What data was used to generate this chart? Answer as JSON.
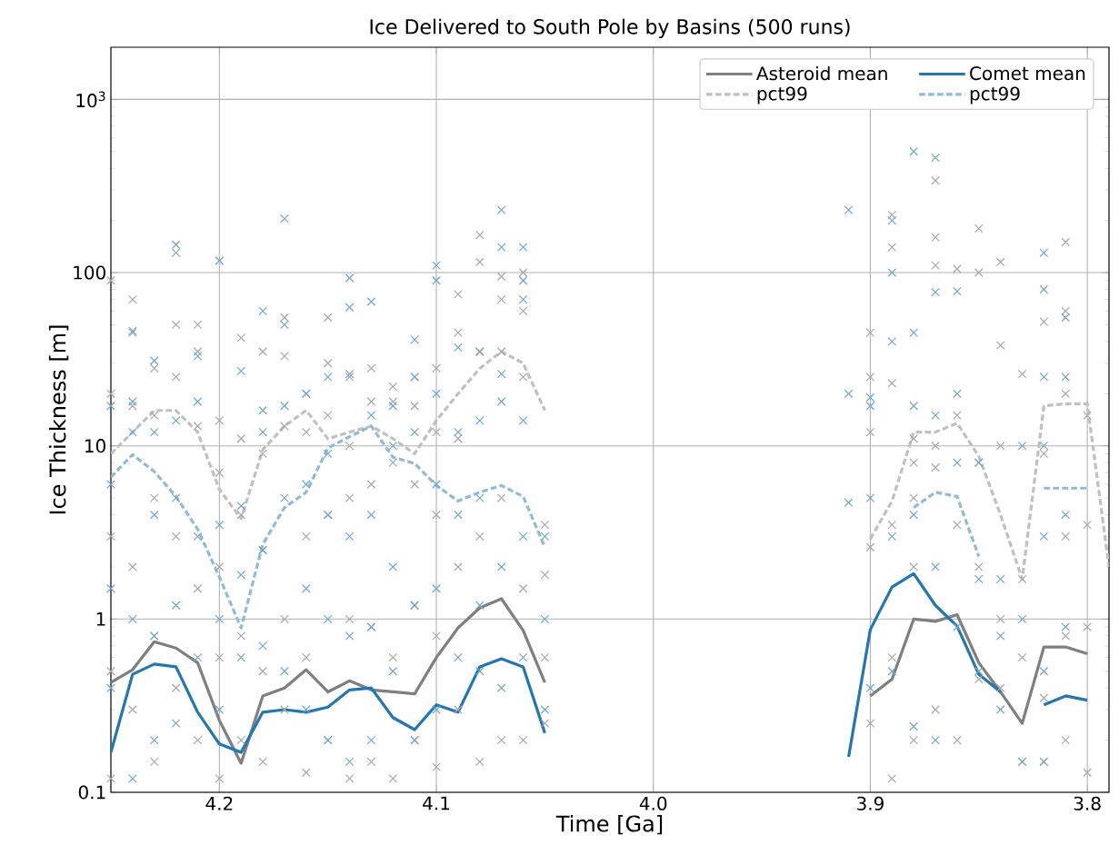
{
  "chart_data": {
    "type": "line",
    "title": "Ice Delivered to South Pole by Basins (500 runs)",
    "xlabel": "Time [Ga]",
    "ylabel": "Ice Thickness [m]",
    "xlim": [
      4.25,
      3.79
    ],
    "ylim": [
      0.1,
      2000
    ],
    "log": "y",
    "grid": true,
    "legend": "top right",
    "xticks": [
      4.2,
      4.1,
      {
        "value": 4.0,
        "label": "4.0"
      },
      3.9,
      3.8
    ],
    "yticks": [
      0.1,
      1,
      10,
      100,
      {
        "value": 1000,
        "label": "10$^{3}$"
      }
    ],
    "x": [
      4.25,
      4.24,
      4.23,
      4.22,
      4.21,
      4.2,
      4.19,
      4.18,
      4.17,
      4.16,
      4.15,
      4.14,
      4.13,
      4.12,
      4.11,
      4.1,
      4.09,
      4.08,
      4.07,
      4.06,
      4.05,
      4.0,
      3.91,
      3.9,
      3.89,
      3.88,
      3.87,
      3.86,
      3.85,
      3.84,
      3.83,
      3.82,
      3.81,
      3.8,
      3.79
    ],
    "series": [
      {
        "type": "scatter",
        "color": "#a6a6a6",
        "marker": "cross",
        "x": [
          4.25,
          4.25,
          4.25,
          4.25,
          4.25,
          4.24,
          4.24,
          4.24,
          4.24,
          4.24,
          4.23,
          4.23,
          4.23,
          4.23,
          4.23,
          4.22,
          4.22,
          4.22,
          4.22,
          4.22,
          4.21,
          4.21,
          4.21,
          4.21,
          4.21,
          4.2,
          4.2,
          4.2,
          4.2,
          4.2,
          4.19,
          4.19,
          4.19,
          4.19,
          4.19,
          4.18,
          4.18,
          4.18,
          4.18,
          4.18,
          4.17,
          4.17,
          4.17,
          4.17,
          4.17,
          4.16,
          4.16,
          4.16,
          4.16,
          4.16,
          4.15,
          4.15,
          4.15,
          4.15,
          4.15,
          4.14,
          4.14,
          4.14,
          4.14,
          4.14,
          4.13,
          4.13,
          4.13,
          4.13,
          4.13,
          4.12,
          4.12,
          4.12,
          4.12,
          4.12,
          4.11,
          4.11,
          4.11,
          4.11,
          4.11,
          4.1,
          4.1,
          4.1,
          4.1,
          4.1,
          4.09,
          4.09,
          4.09,
          4.09,
          4.09,
          4.08,
          4.08,
          4.08,
          4.08,
          4.08,
          4.07,
          4.07,
          4.07,
          4.07,
          4.07,
          4.06,
          4.06,
          4.06,
          4.06,
          4.06,
          4.05,
          4.05,
          4.05,
          4.05,
          3.9,
          3.9,
          3.9,
          3.9,
          3.9,
          3.89,
          3.89,
          3.89,
          3.89,
          3.89,
          3.89,
          3.88,
          3.88,
          3.88,
          3.88,
          3.88,
          3.87,
          3.87,
          3.87,
          3.87,
          3.87,
          3.87,
          3.86,
          3.86,
          3.86,
          3.86,
          3.85,
          3.85,
          3.85,
          3.85,
          3.85,
          3.84,
          3.84,
          3.84,
          3.84,
          3.84,
          3.83,
          3.83,
          3.83,
          3.83,
          3.82,
          3.82,
          3.82,
          3.82,
          3.81,
          3.81,
          3.81,
          3.81,
          3.81,
          3.81,
          3.8,
          3.8,
          3.8,
          3.8
        ],
        "values": [
          90,
          20,
          3,
          0.5,
          0.12,
          70,
          45,
          17,
          2,
          0.3,
          28,
          15,
          5,
          0.8,
          0.15,
          130,
          50,
          25,
          3,
          0.4,
          50,
          35,
          13,
          1.5,
          0.2,
          14,
          7,
          2,
          0.6,
          0.12,
          42,
          11,
          4,
          0.8,
          0.2,
          35,
          9,
          2.5,
          0.5,
          0.15,
          55,
          33,
          13,
          1,
          0.3,
          20,
          12,
          3,
          0.6,
          0.13,
          55,
          30,
          15,
          4,
          0.2,
          25,
          10,
          5,
          1,
          0.12,
          28,
          18,
          6,
          0.9,
          0.15,
          22,
          18,
          8,
          0.6,
          0.12,
          25,
          17,
          6,
          1.2,
          0.2,
          28,
          12,
          4,
          0.8,
          0.14,
          75,
          45,
          11,
          2,
          0.3,
          165,
          115,
          35,
          3,
          0.15,
          95,
          70,
          35,
          5,
          0.2,
          100,
          60,
          25,
          1.5,
          0.2,
          3.5,
          1.8,
          0.6,
          0.25,
          45,
          25,
          12,
          2.6,
          0.25,
          215,
          140,
          23,
          3.5,
          0.6,
          0.12,
          11,
          8,
          5,
          2,
          0.2,
          340,
          160,
          110,
          10,
          7.5,
          0.3,
          105,
          15,
          3.5,
          0.2,
          180,
          100,
          8,
          2,
          0.45,
          115,
          38,
          10,
          1,
          0.4,
          26,
          1.7,
          0.6,
          0.15,
          52,
          9,
          0.35,
          0.15,
          150,
          60,
          20,
          3,
          0.8,
          0.2,
          15,
          3.5,
          0.9,
          0.13
        ]
      },
      {
        "type": "scatter",
        "color": "#6ca6d2",
        "marker": "cross",
        "x": [
          4.25,
          4.25,
          4.25,
          4.25,
          4.24,
          4.24,
          4.24,
          4.24,
          4.24,
          4.23,
          4.23,
          4.23,
          4.23,
          4.23,
          4.22,
          4.22,
          4.22,
          4.22,
          4.22,
          4.21,
          4.21,
          4.21,
          4.21,
          4.2,
          4.2,
          4.2,
          4.2,
          4.19,
          4.19,
          4.19,
          4.19,
          4.18,
          4.18,
          4.18,
          4.18,
          4.18,
          4.17,
          4.17,
          4.17,
          4.17,
          4.17,
          4.16,
          4.16,
          4.16,
          4.16,
          4.15,
          4.15,
          4.15,
          4.15,
          4.15,
          4.14,
          4.14,
          4.14,
          4.14,
          4.14,
          4.14,
          4.13,
          4.13,
          4.13,
          4.13,
          4.13,
          4.12,
          4.12,
          4.12,
          4.12,
          4.11,
          4.11,
          4.11,
          4.11,
          4.11,
          4.1,
          4.1,
          4.1,
          4.1,
          4.1,
          4.1,
          4.09,
          4.09,
          4.09,
          4.09,
          4.08,
          4.08,
          4.08,
          4.08,
          4.08,
          4.07,
          4.07,
          4.07,
          4.07,
          4.07,
          4.07,
          4.06,
          4.06,
          4.06,
          4.06,
          4.06,
          4.06,
          4.05,
          4.05,
          4.05,
          3.91,
          3.91,
          3.91,
          3.9,
          3.9,
          3.9,
          3.9,
          3.89,
          3.89,
          3.89,
          3.89,
          3.89,
          3.88,
          3.88,
          3.88,
          3.88,
          3.88,
          3.87,
          3.87,
          3.87,
          3.87,
          3.87,
          3.86,
          3.86,
          3.86,
          3.86,
          3.85,
          3.85,
          3.85,
          3.84,
          3.84,
          3.84,
          3.83,
          3.83,
          3.83,
          3.82,
          3.82,
          3.82,
          3.82,
          3.82,
          3.82,
          3.82,
          3.81,
          3.81,
          3.81,
          3.81
        ],
        "values": [
          17,
          6,
          1.5,
          0.4,
          46,
          18,
          12,
          1,
          0.12,
          31,
          12,
          4,
          0.8,
          0.2,
          145,
          14,
          5,
          1.2,
          0.25,
          33,
          18,
          3,
          0.6,
          117,
          3.5,
          1,
          0.3,
          27,
          4.5,
          1.8,
          0.6,
          60,
          16,
          12,
          2.5,
          0.7,
          205,
          50,
          17,
          5,
          0.5,
          20,
          6,
          1.5,
          0.3,
          25,
          9,
          4,
          1,
          0.2,
          93,
          63,
          26,
          3,
          0.8,
          0.15,
          68,
          15,
          4,
          0.9,
          0.2,
          17,
          10,
          2,
          0.5,
          41,
          25,
          12,
          1.2,
          0.2,
          110,
          90,
          20,
          6,
          1.5,
          0.3,
          37,
          12,
          4,
          0.6,
          35,
          14,
          5,
          1.2,
          0.5,
          230,
          140,
          26,
          18,
          2,
          0.4,
          140,
          90,
          70,
          14,
          3,
          0.6,
          3,
          1,
          0.3,
          230,
          20,
          4.7,
          19,
          17,
          5,
          0.4,
          200,
          100,
          40,
          3,
          0.5,
          500,
          45,
          17,
          4,
          0.24,
          460,
          77,
          15,
          2,
          0.2,
          78,
          20,
          8,
          0.9,
          8,
          1.7,
          0.5,
          1.7,
          0.8,
          0.3,
          10,
          1,
          0.15,
          130,
          80,
          25,
          10,
          3,
          0.5,
          0.15,
          55,
          25,
          4,
          0.9
        ]
      },
      {
        "name": "Asteroid mean",
        "color": "#7f7f7f",
        "line_style": "solid",
        "values": [
          0.43,
          0.51,
          0.74,
          0.68,
          0.56,
          0.26,
          0.147,
          0.36,
          0.4,
          0.51,
          0.38,
          0.44,
          0.39,
          0.38,
          0.37,
          0.6,
          0.89,
          1.16,
          1.31,
          0.86,
          0.43,
          null,
          null,
          0.36,
          0.45,
          1.0,
          0.97,
          1.06,
          0.56,
          0.38,
          0.25,
          0.69,
          0.69,
          0.63,
          null
        ]
      },
      {
        "name": "Comet mean",
        "color": "#1f77b4",
        "line_style": "solid",
        "values": [
          0.17,
          0.48,
          0.55,
          0.53,
          0.29,
          0.19,
          0.17,
          0.29,
          0.3,
          0.29,
          0.31,
          0.39,
          0.4,
          0.27,
          0.23,
          0.32,
          0.29,
          0.53,
          0.59,
          0.53,
          0.22,
          null,
          0.16,
          0.87,
          1.53,
          1.83,
          1.2,
          0.91,
          0.48,
          0.38,
          null,
          0.32,
          0.36,
          0.34,
          null
        ]
      },
      {
        "name": "pct99",
        "color": "#c0c0c0",
        "line_style": "dashed",
        "values": [
          9,
          12,
          16,
          16,
          12,
          5.6,
          3.8,
          9.5,
          13,
          16,
          11,
          12,
          13,
          11,
          9,
          14,
          20,
          28,
          35,
          30,
          16,
          null,
          null,
          2.9,
          4.8,
          12,
          12,
          13.5,
          8.7,
          4,
          1.7,
          17,
          17.5,
          17.5,
          2
        ]
      },
      {
        "name": "pct99",
        "color": "#8fbbd9",
        "line_style": "dashed",
        "values": [
          6.6,
          8.9,
          7.1,
          5.1,
          3.3,
          1.75,
          0.89,
          2.7,
          4.4,
          5.4,
          9.7,
          11.3,
          13,
          8.6,
          7.9,
          5.9,
          4.8,
          5.4,
          5.9,
          5.1,
          2.6,
          null,
          null,
          null,
          null,
          4.4,
          5.4,
          5.1,
          2.3,
          null,
          null,
          5.7,
          5.7,
          5.7,
          null
        ]
      }
    ]
  }
}
